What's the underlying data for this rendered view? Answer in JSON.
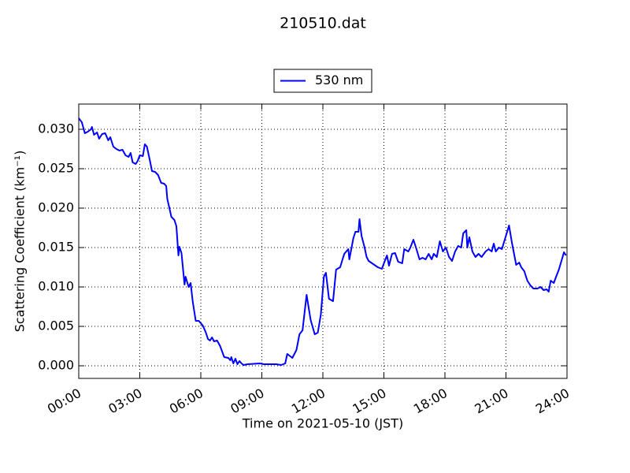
{
  "chart_data": {
    "type": "line",
    "title": "210510.dat",
    "xlabel": "Time on 2021-05-10 (JST)",
    "ylabel": "Scattering Coefficient (km⁻¹)",
    "legend": "top",
    "grid": true,
    "x": [
      0,
      0.15,
      0.3,
      0.45,
      0.6,
      0.65,
      0.75,
      0.9,
      1.0,
      1.15,
      1.3,
      1.45,
      1.55,
      1.7,
      1.85,
      2.0,
      2.15,
      2.3,
      2.45,
      2.55,
      2.65,
      2.8,
      2.9,
      3.0,
      3.15,
      3.25,
      3.35,
      3.5,
      3.6,
      3.75,
      3.9,
      4.05,
      4.2,
      4.3,
      4.35,
      4.5,
      4.55,
      4.7,
      4.8,
      4.9,
      4.95,
      5.05,
      5.2,
      5.25,
      5.4,
      5.5,
      5.6,
      5.75,
      5.9,
      6.1,
      6.25,
      6.35,
      6.45,
      6.55,
      6.65,
      6.8,
      6.95,
      7.05,
      7.15,
      7.35,
      7.45,
      7.5,
      7.6,
      7.7,
      7.8,
      7.9,
      8.0,
      8.1,
      8.3,
      8.9,
      9.1,
      9.7,
      9.95,
      10.15,
      10.25,
      10.5,
      10.7,
      10.85,
      11.0,
      11.2,
      11.4,
      11.6,
      11.75,
      11.9,
      12.05,
      12.15,
      12.3,
      12.5,
      12.65,
      12.85,
      13.05,
      13.25,
      13.3,
      13.5,
      13.6,
      13.75,
      13.8,
      13.9,
      14.05,
      14.15,
      14.25,
      14.7,
      14.9,
      15.0,
      15.15,
      15.25,
      15.4,
      15.55,
      15.7,
      15.9,
      16.0,
      16.2,
      16.3,
      16.45,
      16.6,
      16.75,
      16.9,
      17.05,
      17.2,
      17.35,
      17.45,
      17.6,
      17.75,
      17.9,
      18.05,
      18.2,
      18.35,
      18.5,
      18.65,
      18.8,
      18.9,
      19.05,
      19.1,
      19.2,
      19.35,
      19.5,
      19.65,
      19.8,
      20.0,
      20.15,
      20.3,
      20.4,
      20.5,
      20.65,
      20.8,
      21.0,
      21.15,
      21.3,
      21.45,
      21.5,
      21.65,
      21.75,
      21.9,
      22.05,
      22.2,
      22.35,
      22.55,
      22.7,
      22.85,
      23.0,
      23.1,
      23.2,
      23.35,
      23.45,
      23.6,
      23.75,
      23.85,
      23.95
    ],
    "series": [
      {
        "name": "530 nm",
        "color": "#0000ff",
        "values": [
          0.0314,
          0.0309,
          0.0295,
          0.0297,
          0.03,
          0.0303,
          0.0293,
          0.0296,
          0.0288,
          0.0294,
          0.0295,
          0.0286,
          0.029,
          0.0278,
          0.0275,
          0.0273,
          0.0274,
          0.0267,
          0.0265,
          0.027,
          0.0258,
          0.0256,
          0.026,
          0.0267,
          0.0266,
          0.0281,
          0.0278,
          0.026,
          0.0247,
          0.0246,
          0.0242,
          0.0232,
          0.0231,
          0.0228,
          0.0212,
          0.0195,
          0.0189,
          0.0185,
          0.0177,
          0.014,
          0.0151,
          0.0143,
          0.0103,
          0.0113,
          0.01,
          0.0105,
          0.0082,
          0.0057,
          0.0057,
          0.0051,
          0.0042,
          0.0034,
          0.0032,
          0.0036,
          0.0031,
          0.0032,
          0.0025,
          0.0018,
          0.0011,
          0.001,
          0.0007,
          0.0011,
          0.0003,
          0.0009,
          0.0002,
          0.0006,
          0.0003,
          0.0001,
          0.0002,
          0.0003,
          0.0002,
          0.0002,
          0.0001,
          0.0003,
          0.0015,
          0.001,
          0.002,
          0.004,
          0.0045,
          0.009,
          0.0058,
          0.004,
          0.0042,
          0.0065,
          0.0113,
          0.0118,
          0.0085,
          0.0082,
          0.0122,
          0.0125,
          0.0142,
          0.0148,
          0.0135,
          0.0162,
          0.017,
          0.017,
          0.0186,
          0.0165,
          0.015,
          0.0138,
          0.0133,
          0.0125,
          0.0123,
          0.013,
          0.014,
          0.0127,
          0.0142,
          0.0143,
          0.0132,
          0.013,
          0.0148,
          0.0145,
          0.015,
          0.016,
          0.0148,
          0.0135,
          0.0137,
          0.0135,
          0.0142,
          0.0135,
          0.0142,
          0.0138,
          0.0158,
          0.0145,
          0.015,
          0.0138,
          0.0133,
          0.0145,
          0.0152,
          0.015,
          0.0168,
          0.0172,
          0.015,
          0.0163,
          0.0145,
          0.0138,
          0.0142,
          0.0138,
          0.0145,
          0.0148,
          0.0145,
          0.0155,
          0.0145,
          0.015,
          0.0148,
          0.0165,
          0.0178,
          0.0155,
          0.0135,
          0.0128,
          0.0131,
          0.0125,
          0.012,
          0.0108,
          0.0102,
          0.0098,
          0.0098,
          0.01,
          0.0096,
          0.0097,
          0.0094,
          0.0108,
          0.0105,
          0.0112,
          0.0122,
          0.0135,
          0.0144,
          0.014
        ]
      }
    ],
    "xlim": [
      0,
      24
    ],
    "xticks": [
      {
        "value": 0,
        "label": "00:00"
      },
      {
        "value": 3,
        "label": "03:00"
      },
      {
        "value": 6,
        "label": "06:00"
      },
      {
        "value": 9,
        "label": "09:00"
      },
      {
        "value": 12,
        "label": "12:00"
      },
      {
        "value": 15,
        "label": "15:00"
      },
      {
        "value": 18,
        "label": "18:00"
      },
      {
        "value": 21,
        "label": "21:00"
      },
      {
        "value": 24,
        "label": "24:00"
      }
    ],
    "ylim": [
      -0.0016,
      0.0332
    ],
    "yticks": [
      {
        "value": 0,
        "label": "0.000"
      },
      0.005,
      {
        "value": 0.01,
        "label": "0.010"
      },
      0.015,
      {
        "value": 0.02,
        "label": "0.020"
      },
      0.025,
      {
        "value": 0.03,
        "label": "0.030"
      }
    ]
  }
}
